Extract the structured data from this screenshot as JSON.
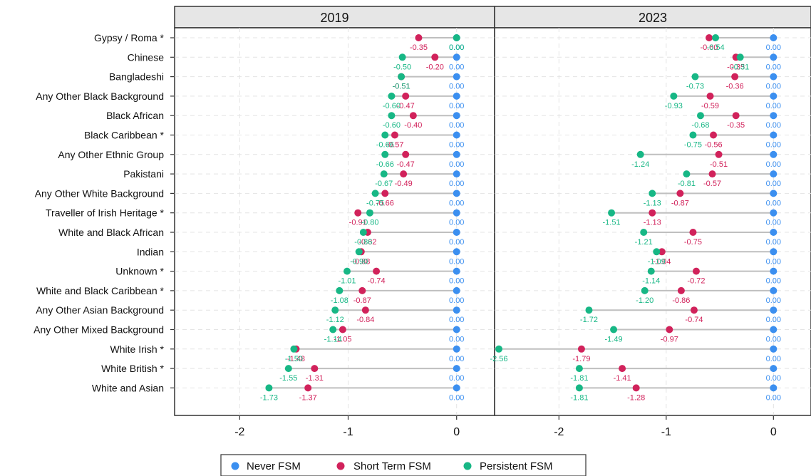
{
  "chart_data": {
    "type": "dot",
    "categories": [
      "Gypsy / Roma *",
      "Chinese",
      "Bangladeshi",
      "Any Other Black Background",
      "Black African",
      "Black Caribbean *",
      "Any Other Ethnic Group",
      "Pakistani",
      "Any Other White Background",
      "Traveller of Irish Heritage *",
      "White and Black African",
      "Indian",
      "Unknown *",
      "White and Black Caribbean *",
      "Any Other Asian Background",
      "Any Other Mixed Background",
      "White Irish *",
      "White British *",
      "White and Asian"
    ],
    "panels": [
      {
        "title": "2019",
        "series": [
          {
            "name": "Never FSM",
            "values": [
              0,
              0,
              0,
              0,
              0,
              0,
              0,
              0,
              0,
              0,
              0,
              0,
              0,
              0,
              0,
              0,
              0,
              0,
              0
            ],
            "labels": [
              "0.00",
              "0.00",
              "0.00",
              "0.00",
              "0.00",
              "0.00",
              "0.00",
              "0.00",
              "0.00",
              "0.00",
              "0.00",
              "0.00",
              "0.00",
              "0.00",
              "0.00",
              "0.00",
              "0.00",
              "0.00",
              "0.00"
            ]
          },
          {
            "name": "Short Term FSM",
            "values": [
              -0.35,
              -0.2,
              -0.51,
              -0.47,
              -0.4,
              -0.57,
              -0.47,
              -0.49,
              -0.66,
              -0.91,
              -0.82,
              -0.88,
              -0.74,
              -0.87,
              -0.84,
              -1.05,
              -1.48,
              -1.31,
              -1.37
            ],
            "labels": [
              "-0.35",
              "-0.20",
              "-0.51",
              "-0.47",
              "-0.40",
              "-0.57",
              "-0.47",
              "-0.49",
              "-0.66",
              "-0.91",
              "-0.82",
              "-0.88",
              "-0.74",
              "-0.87",
              "-0.84",
              "-1.05",
              "-1.48",
              "-1.31",
              "-1.37"
            ]
          },
          {
            "name": "Persistent FSM",
            "values": [
              0.0,
              -0.5,
              -0.51,
              -0.6,
              -0.6,
              -0.66,
              -0.66,
              -0.67,
              -0.75,
              -0.8,
              -0.86,
              -0.9,
              -1.01,
              -1.08,
              -1.12,
              -1.14,
              -1.5,
              -1.55,
              -1.73
            ],
            "labels": [
              "0.00",
              "-0.50",
              "-0.51",
              "-0.60",
              "-0.60",
              "-0.66",
              "-0.66",
              "-0.67",
              "-0.75",
              "-0.80",
              "-0.86",
              "-0.90",
              "-1.01",
              "-1.08",
              "-1.12",
              "-1.14",
              "-1.50",
              "-1.55",
              "-1.73"
            ]
          }
        ]
      },
      {
        "title": "2023",
        "series": [
          {
            "name": "Never FSM",
            "values": [
              0,
              0,
              0,
              0,
              0,
              0,
              0,
              0,
              0,
              0,
              0,
              0,
              0,
              0,
              0,
              0,
              0,
              0,
              0
            ],
            "labels": [
              "0.00",
              "0.00",
              "0.00",
              "0.00",
              "0.00",
              "0.00",
              "0.00",
              "0.00",
              "0.00",
              "0.00",
              "0.00",
              "0.00",
              "0.00",
              "0.00",
              "0.00",
              "0.00",
              "0.00",
              "0.00",
              "0.00"
            ]
          },
          {
            "name": "Short Term FSM",
            "values": [
              -0.6,
              -0.35,
              -0.36,
              -0.59,
              -0.35,
              -0.56,
              -0.51,
              -0.57,
              -0.87,
              -1.13,
              -0.75,
              -1.04,
              -0.72,
              -0.86,
              -0.74,
              -0.97,
              -1.79,
              -1.41,
              -1.28
            ],
            "labels": [
              "-0.60",
              "-0.35",
              "-0.36",
              "-0.59",
              "-0.35",
              "-0.56",
              "-0.51",
              "-0.57",
              "-0.87",
              "-1.13",
              "-0.75",
              "-1.04",
              "-0.72",
              "-0.86",
              "-0.74",
              "-0.97",
              "-1.79",
              "-1.41",
              "-1.28"
            ]
          },
          {
            "name": "Persistent FSM",
            "values": [
              -0.54,
              -0.31,
              -0.73,
              -0.93,
              -0.68,
              -0.75,
              -1.24,
              -0.81,
              -1.13,
              -1.51,
              -1.21,
              -1.09,
              -1.14,
              -1.2,
              -1.72,
              -1.49,
              -2.56,
              -1.81,
              -1.81
            ],
            "labels": [
              "-0.54",
              "-0.31",
              "-0.73",
              "-0.93",
              "-0.68",
              "-0.75",
              "-1.24",
              "-0.81",
              "-1.13",
              "-1.51",
              "-1.21",
              "-1.09",
              "-1.14",
              "-1.20",
              "-1.72",
              "-1.49",
              "-2.56",
              "-1.81",
              "-1.81"
            ]
          }
        ]
      }
    ],
    "xticks": [
      "-2",
      "-1",
      "0"
    ],
    "xlim": [
      -2.6,
      0.35
    ],
    "grid": true,
    "legend_position": "bottom",
    "colors": {
      "Never FSM": "#3b8ff0",
      "Short Term FSM": "#d1225b",
      "Persistent FSM": "#17b785"
    }
  }
}
